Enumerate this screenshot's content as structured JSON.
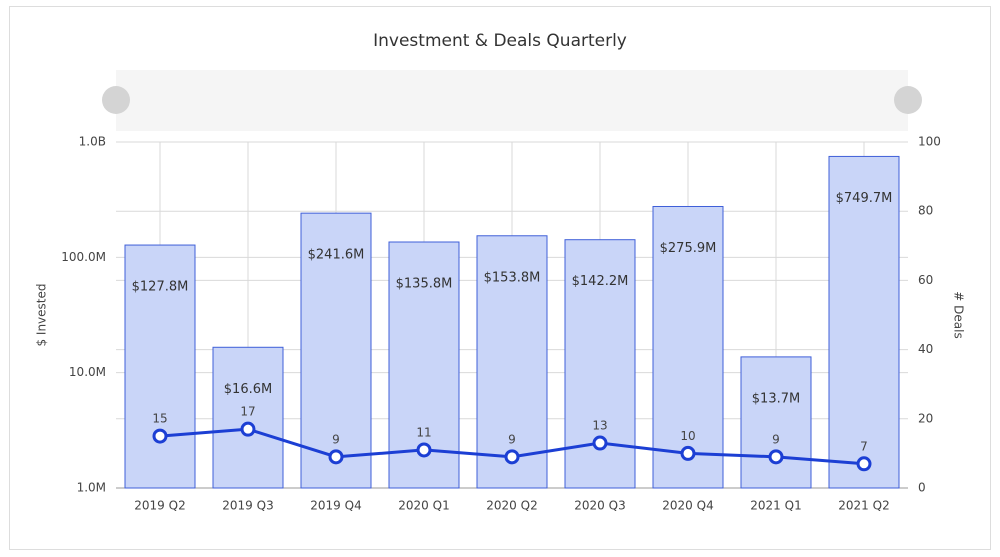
{
  "chart_data": {
    "type": "bar-line",
    "title": "Investment & Deals Quarterly",
    "y_label": "$ Invested",
    "y2_label": "# Deals",
    "categories": [
      "2019 Q2",
      "2019 Q3",
      "2019 Q4",
      "2020 Q1",
      "2020 Q2",
      "2020 Q3",
      "2020 Q4",
      "2021 Q1",
      "2021 Q2"
    ],
    "log_y": true,
    "grid": true,
    "ylim": [
      1000000,
      1000000000
    ],
    "yticks": [
      {
        "value": 1000000,
        "label": "1.0M"
      },
      {
        "value": 10000000,
        "label": "10.0M"
      },
      {
        "value": 100000000,
        "label": "100.0M"
      },
      {
        "value": 1000000000,
        "label": "1.0B"
      }
    ],
    "y2lim": [
      0,
      100
    ],
    "y2ticks": [
      0,
      20,
      40,
      60,
      80,
      100
    ],
    "series": [
      {
        "type": "bar",
        "color": "#c9d5f8",
        "stroke": "#3f5fd8",
        "values": [
          127800000,
          16600000,
          241600000,
          135800000,
          153800000,
          142200000,
          275900000,
          13700000,
          749700000
        ],
        "value_labels": [
          "$127.8M",
          "$16.6M",
          "$241.6M",
          "$135.8M",
          "$153.8M",
          "$142.2M",
          "$275.9M",
          "$13.7M",
          "$749.7M"
        ]
      },
      {
        "type": "line",
        "axis": "y2",
        "color": "#1c3fd4",
        "values": [
          15,
          17,
          9,
          11,
          9,
          13,
          10,
          9,
          7
        ]
      }
    ]
  }
}
